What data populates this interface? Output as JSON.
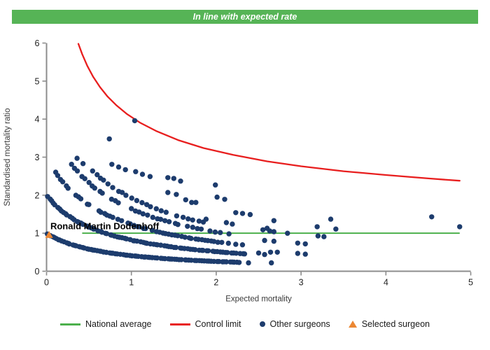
{
  "header": {
    "title": "In line with expected rate",
    "bg_color": "#56b456",
    "text_color": "#ffffff"
  },
  "chart_data": {
    "type": "scatter",
    "xlabel": "Expected mortality",
    "ylabel": "Standardised mortality ratio",
    "xlim": [
      0,
      5
    ],
    "ylim": [
      0,
      6
    ],
    "x_ticks": [
      0,
      1,
      2,
      3,
      4,
      5
    ],
    "y_ticks": [
      0,
      1,
      2,
      3,
      4,
      5,
      6
    ],
    "grid": "off",
    "axis_color": "#8c8c8c",
    "tick_label_color": "#1f1f1f",
    "axis_title_color": "#3a3a3a",
    "national_average": {
      "label": "National average",
      "y": 1,
      "x_start": 0.42,
      "x_end": 4.87,
      "color": "#4cb04c"
    },
    "control_limit": {
      "label": "Control limit",
      "color": "#e81e1e",
      "points": [
        [
          0.375,
          5.98
        ],
        [
          0.42,
          5.71
        ],
        [
          0.48,
          5.4
        ],
        [
          0.55,
          5.11
        ],
        [
          0.63,
          4.84
        ],
        [
          0.72,
          4.59
        ],
        [
          0.82,
          4.37
        ],
        [
          0.95,
          4.13
        ],
        [
          1.1,
          3.91
        ],
        [
          1.3,
          3.68
        ],
        [
          1.55,
          3.45
        ],
        [
          1.85,
          3.24
        ],
        [
          2.2,
          3.06
        ],
        [
          2.6,
          2.89
        ],
        [
          3.0,
          2.76
        ],
        [
          3.5,
          2.63
        ],
        [
          4.0,
          2.53
        ],
        [
          4.5,
          2.44
        ],
        [
          4.87,
          2.38
        ]
      ]
    },
    "other_surgeons": {
      "label": "Other surgeons",
      "color": "#1d3c6d",
      "dot_radius": 3.7,
      "band_formula": "y = k / (1 + 1.44x)",
      "bands": [
        {
          "k": 1.0,
          "x_start": 0.02,
          "x_end": 2.28,
          "count": 85
        },
        {
          "k": 2.0,
          "x_start": 0.02,
          "x_end": 2.34,
          "count": 80
        },
        {
          "k": 3.0,
          "x_start": 0.12,
          "x_end": 2.3,
          "count": 62
        },
        {
          "k": 4.0,
          "x_start": 0.3,
          "x_end": 2.2,
          "count": 40
        },
        {
          "k": 4.7,
          "x_start": 0.55,
          "x_end": 1.85,
          "count": 24
        }
      ],
      "extra_points": [
        [
          0.36,
          2.97
        ],
        [
          0.43,
          2.83
        ],
        [
          0.74,
          3.48
        ],
        [
          1.04,
          3.96
        ],
        [
          0.77,
          2.81
        ],
        [
          0.85,
          2.74
        ],
        [
          0.93,
          2.67
        ],
        [
          1.05,
          2.62
        ],
        [
          1.13,
          2.55
        ],
        [
          1.22,
          2.49
        ],
        [
          1.43,
          2.46
        ],
        [
          1.5,
          2.44
        ],
        [
          1.58,
          2.37
        ],
        [
          1.99,
          2.27
        ],
        [
          1.43,
          2.07
        ],
        [
          1.53,
          2.02
        ],
        [
          1.64,
          1.88
        ],
        [
          1.71,
          1.81
        ],
        [
          1.76,
          1.81
        ],
        [
          2.01,
          1.95
        ],
        [
          2.1,
          1.89
        ],
        [
          2.23,
          1.54
        ],
        [
          2.31,
          1.52
        ],
        [
          2.4,
          1.49
        ],
        [
          1.88,
          1.37
        ],
        [
          2.12,
          1.28
        ],
        [
          2.19,
          1.24
        ],
        [
          2.55,
          1.09
        ],
        [
          2.6,
          1.13
        ],
        [
          2.63,
          1.06
        ],
        [
          2.68,
          1.33
        ],
        [
          2.68,
          1.04
        ],
        [
          2.84,
          1.0
        ],
        [
          2.57,
          0.81
        ],
        [
          2.68,
          0.79
        ],
        [
          2.64,
          0.5
        ],
        [
          2.72,
          0.5
        ],
        [
          2.65,
          0.22
        ],
        [
          2.5,
          0.48
        ],
        [
          2.57,
          0.44
        ],
        [
          2.38,
          0.22
        ],
        [
          2.96,
          0.74
        ],
        [
          3.05,
          0.72
        ],
        [
          2.96,
          0.47
        ],
        [
          3.05,
          0.45
        ],
        [
          3.19,
          1.17
        ],
        [
          3.2,
          0.93
        ],
        [
          3.27,
          0.91
        ],
        [
          3.35,
          1.37
        ],
        [
          3.41,
          1.11
        ],
        [
          4.54,
          1.43
        ],
        [
          4.87,
          1.17
        ]
      ]
    },
    "selected_surgeon": {
      "label": "Ronald Martin Dodenhoff",
      "x": 0.03,
      "y": 0.96,
      "color": "#ec8733"
    }
  },
  "legend": {
    "items": [
      {
        "label": "National average",
        "marker": "line",
        "color": "#4cb04c"
      },
      {
        "label": "Control limit",
        "marker": "line",
        "color": "#e81e1e"
      },
      {
        "label": "Other surgeons",
        "marker": "dot",
        "color": "#1d3c6d"
      },
      {
        "label": "Selected surgeon",
        "marker": "triangle",
        "color": "#ec8733"
      }
    ]
  }
}
